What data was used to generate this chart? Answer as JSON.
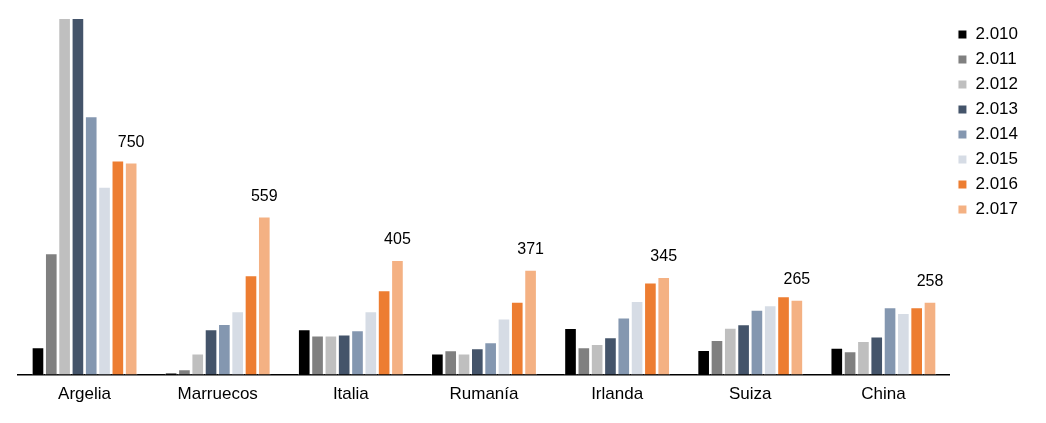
{
  "chart_data": {
    "type": "bar",
    "categories": [
      "Argelia",
      "Marruecos",
      "Italia",
      "Rumanía",
      "Irlanda",
      "Suiza",
      "China"
    ],
    "series": [
      {
        "name": "2.010",
        "color": "#000000",
        "values": [
          97,
          7,
          160,
          75,
          165,
          87,
          95
        ]
      },
      {
        "name": "2.011",
        "color": "#808080",
        "values": [
          429,
          19,
          138,
          86,
          97,
          122,
          83
        ]
      },
      {
        "name": "2.012",
        "color": "#bfbfbf",
        "values": [
          1261,
          75,
          138,
          75,
          108,
          166,
          119
        ]
      },
      {
        "name": "2.013",
        "color": "#44546a",
        "values": [
          1261,
          160,
          142,
          93,
          132,
          178,
          135
        ]
      },
      {
        "name": "2.014",
        "color": "#8497b0",
        "values": [
          914,
          179,
          157,
          114,
          202,
          229,
          238
        ]
      },
      {
        "name": "2.015",
        "color": "#d6dce5",
        "values": [
          664,
          224,
          224,
          198,
          260,
          245,
          218
        ]
      },
      {
        "name": "2.016",
        "color": "#ed7d31",
        "values": [
          757,
          351,
          298,
          258,
          326,
          277,
          238
        ]
      },
      {
        "name": "2.017",
        "color": "#f4b183",
        "values": [
          750,
          559,
          405,
          371,
          345,
          265,
          258
        ],
        "value_labels": [
          "750",
          "559",
          "405",
          "371",
          "345",
          "265",
          "258"
        ]
      }
    ],
    "ylim": [
      0,
      1261
    ],
    "legend": "top right",
    "tick_labels": "x"
  }
}
